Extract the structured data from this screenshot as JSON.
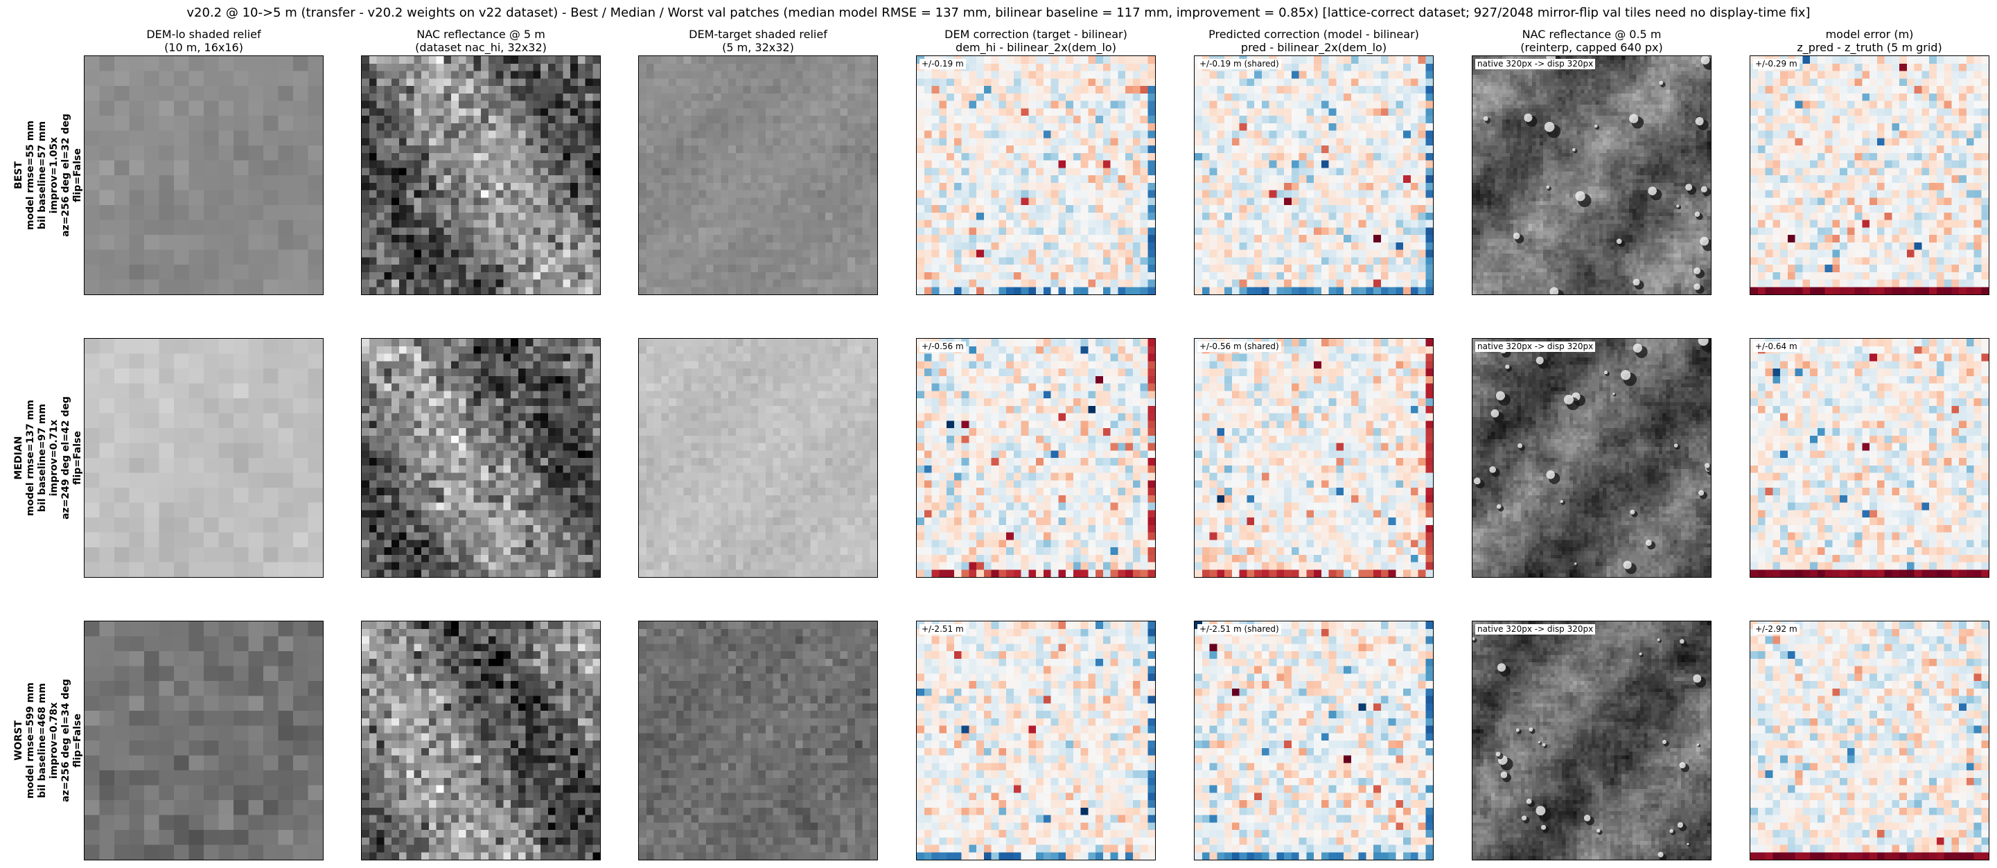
{
  "figure": {
    "suptitle": "v20.2 @ 10->5 m (transfer - v20.2 weights on v22 dataset) - Best / Median / Worst val patches  (median model RMSE = 137 mm, bilinear baseline = 117 mm, improvement = 0.85x)  [lattice-correct dataset; 927/2048 mirror-flip val tiles need no display-time fix]"
  },
  "columns": [
    {
      "key": "dem_lo",
      "title_line1": "DEM-lo shaded relief",
      "title_line2": "(10 m, 16x16)",
      "grid": 16,
      "kind": "gray"
    },
    {
      "key": "nac_5m",
      "title_line1": "NAC reflectance @ 5 m",
      "title_line2": "(dataset nac_hi, 32x32)",
      "grid": 32,
      "kind": "gray"
    },
    {
      "key": "dem_target",
      "title_line1": "DEM-target shaded relief",
      "title_line2": "(5 m, 32x32)",
      "grid": 32,
      "kind": "gray"
    },
    {
      "key": "dem_corr",
      "title_line1": "DEM correction (target - bilinear)",
      "title_line2": "dem_hi - bilinear_2x(dem_lo)",
      "grid": 32,
      "kind": "div"
    },
    {
      "key": "pred_corr",
      "title_line1": "Predicted correction (model - bilinear)",
      "title_line2": "pred - bilinear_2x(dem_lo)",
      "grid": 32,
      "kind": "div"
    },
    {
      "key": "nac_05m",
      "title_line1": "NAC reflectance @ 0.5 m",
      "title_line2": "(reinterp, capped 640 px)",
      "grid": 0,
      "kind": "photo"
    },
    {
      "key": "model_err",
      "title_line1": "model error (m)",
      "title_line2": "z_pred - z_truth (5 m grid)",
      "grid": 32,
      "kind": "div"
    }
  ],
  "rows": [
    {
      "key": "best",
      "label_lines": [
        "BEST",
        "model rmse=55 mm",
        "bil baseline=57 mm",
        "improv=1.05x",
        "az=256 deg el=32 deg",
        "flip=False"
      ],
      "badges": {
        "dem_corr": "+/-0.19 m",
        "pred_corr": "+/-0.19 m (shared)",
        "nac_05m": "native 320px -> disp 320px",
        "model_err": "+/-0.29 m"
      }
    },
    {
      "key": "median",
      "label_lines": [
        "MEDIAN",
        "model rmse=137 mm",
        "bil baseline=97 mm",
        "improv=0.71x",
        "az=249 deg el=42 deg",
        "flip=False"
      ],
      "badges": {
        "dem_corr": "+/-0.56 m",
        "pred_corr": "+/-0.56 m (shared)",
        "nac_05m": "native 320px -> disp 320px",
        "model_err": "+/-0.64 m"
      }
    },
    {
      "key": "worst",
      "label_lines": [
        "WORST",
        "model rmse=599 mm",
        "bil baseline=468 mm",
        "improv=0.78x",
        "az=256 deg el=34 deg",
        "flip=False"
      ],
      "badges": {
        "dem_corr": "+/-2.51 m",
        "pred_corr": "+/-2.51 m (shared)",
        "nac_05m": "native 320px -> disp 320px",
        "model_err": "+/-2.92 m"
      }
    }
  ],
  "chart_data": {
    "type": "heatmap",
    "layout": "3 rows x 7 columns of image panels",
    "row_names": [
      "BEST",
      "MEDIAN",
      "WORST"
    ],
    "model_rmse_mm": [
      55,
      137,
      599
    ],
    "bilinear_baseline_mm": [
      57,
      97,
      468
    ],
    "improvement": [
      1.05,
      0.71,
      0.78
    ],
    "sun_azimuth_deg": [
      256,
      249,
      256
    ],
    "sun_elevation_deg": [
      32,
      42,
      34
    ],
    "flip": [
      false,
      false,
      false
    ],
    "colorscale_range_m": {
      "dem_correction": [
        0.19,
        0.56,
        2.51
      ],
      "predicted_correction": [
        0.19,
        0.56,
        2.51
      ],
      "model_error": [
        0.29,
        0.64,
        2.92
      ]
    },
    "median_model_rmse_mm": 137,
    "median_bilinear_baseline_mm": 117,
    "median_improvement": 0.85,
    "colormaps": {
      "diverging": [
        "#053061",
        "#2166ac",
        "#4393c3",
        "#92c5de",
        "#d1e5f0",
        "#f7f7f7",
        "#fddbc7",
        "#f4a582",
        "#d6604d",
        "#b2182b",
        "#67001f"
      ]
    },
    "row_tone": {
      "dem_lo": [
        0.55,
        0.76,
        0.45
      ],
      "dem_target": [
        0.55,
        0.75,
        0.43
      ],
      "nac_05m": [
        0.42,
        0.36,
        0.38
      ]
    }
  }
}
